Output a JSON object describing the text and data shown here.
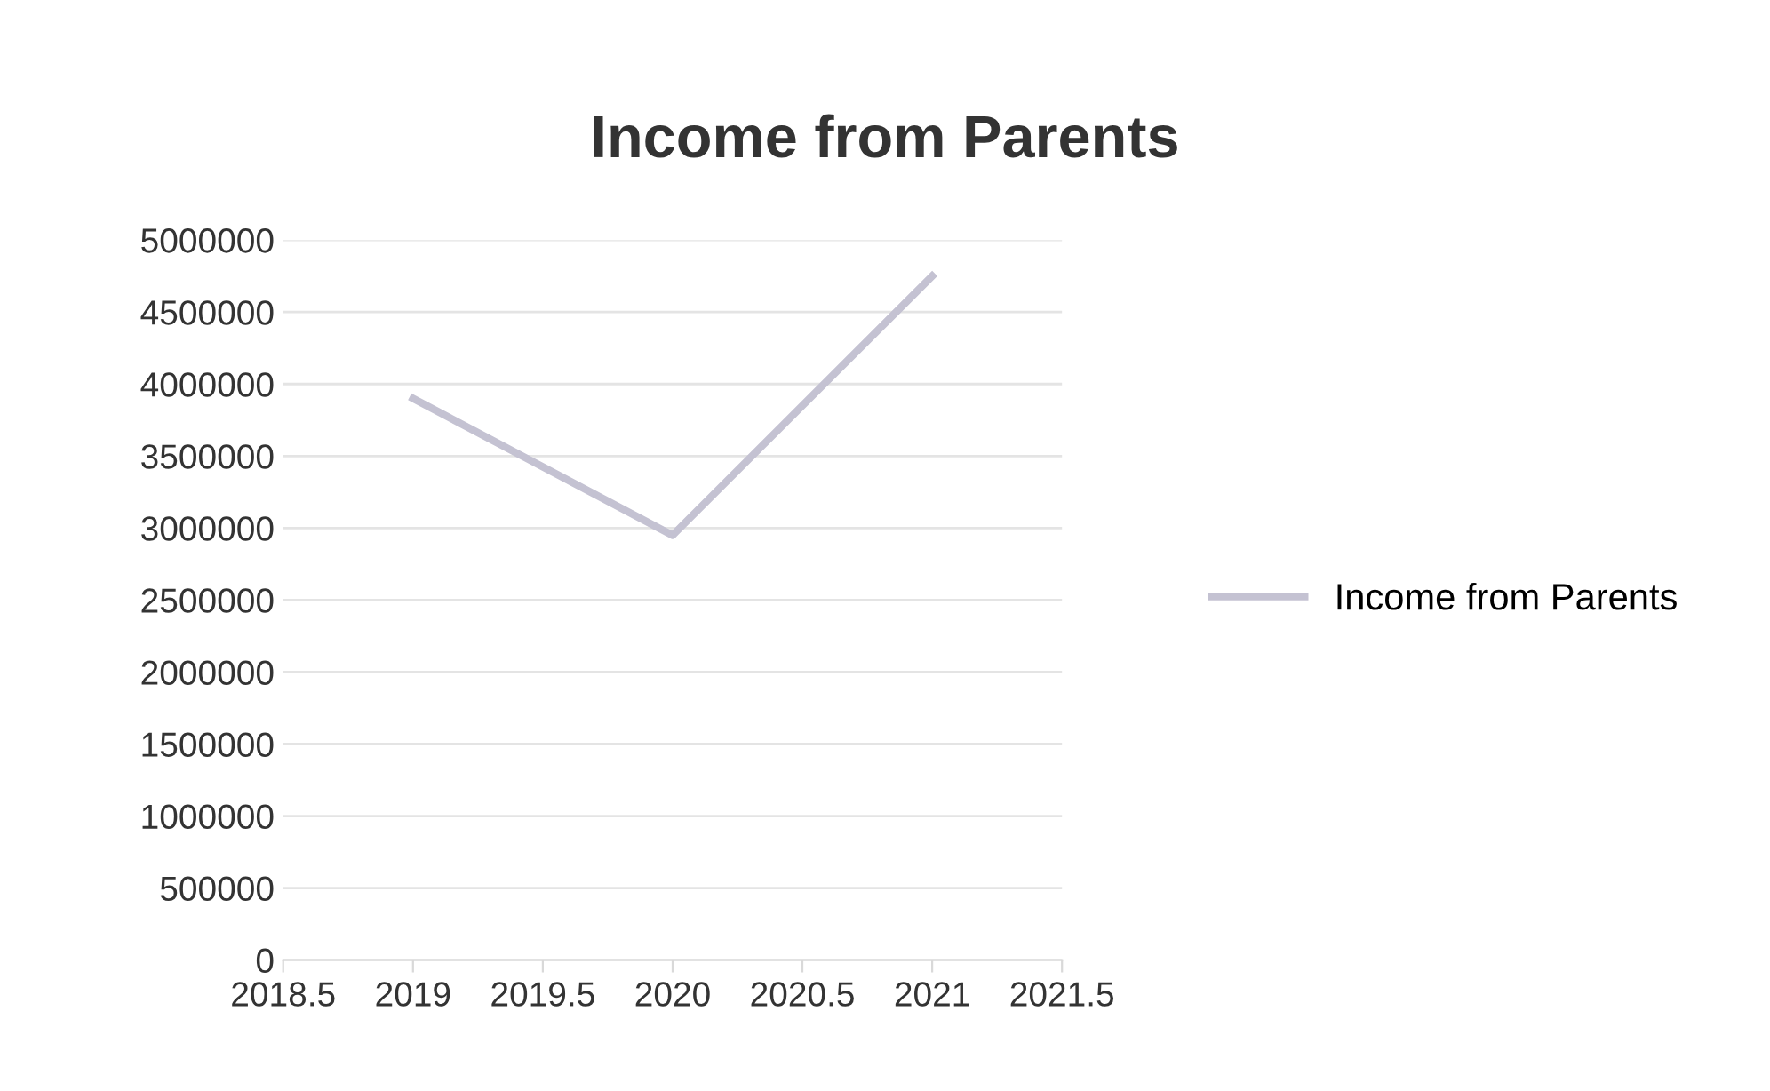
{
  "chart_data": {
    "type": "line",
    "title": "Income from Parents",
    "x": [
      2019,
      2020,
      2021
    ],
    "series": [
      {
        "name": "Income from Parents",
        "color": "#c4c2d2",
        "values": [
          3900000,
          2950000,
          4750000
        ]
      }
    ],
    "xlim": [
      2018.5,
      2021.5
    ],
    "xticks": [
      2018.5,
      2019,
      2019.5,
      2020,
      2020.5,
      2021,
      2021.5
    ],
    "ylim": [
      0,
      5000000
    ],
    "yticks": [
      0,
      500000,
      1000000,
      1500000,
      2000000,
      2500000,
      3000000,
      3500000,
      4000000,
      4500000,
      5000000
    ],
    "grid": "y",
    "legend": "right",
    "marker": "none",
    "line_style": "solid"
  }
}
